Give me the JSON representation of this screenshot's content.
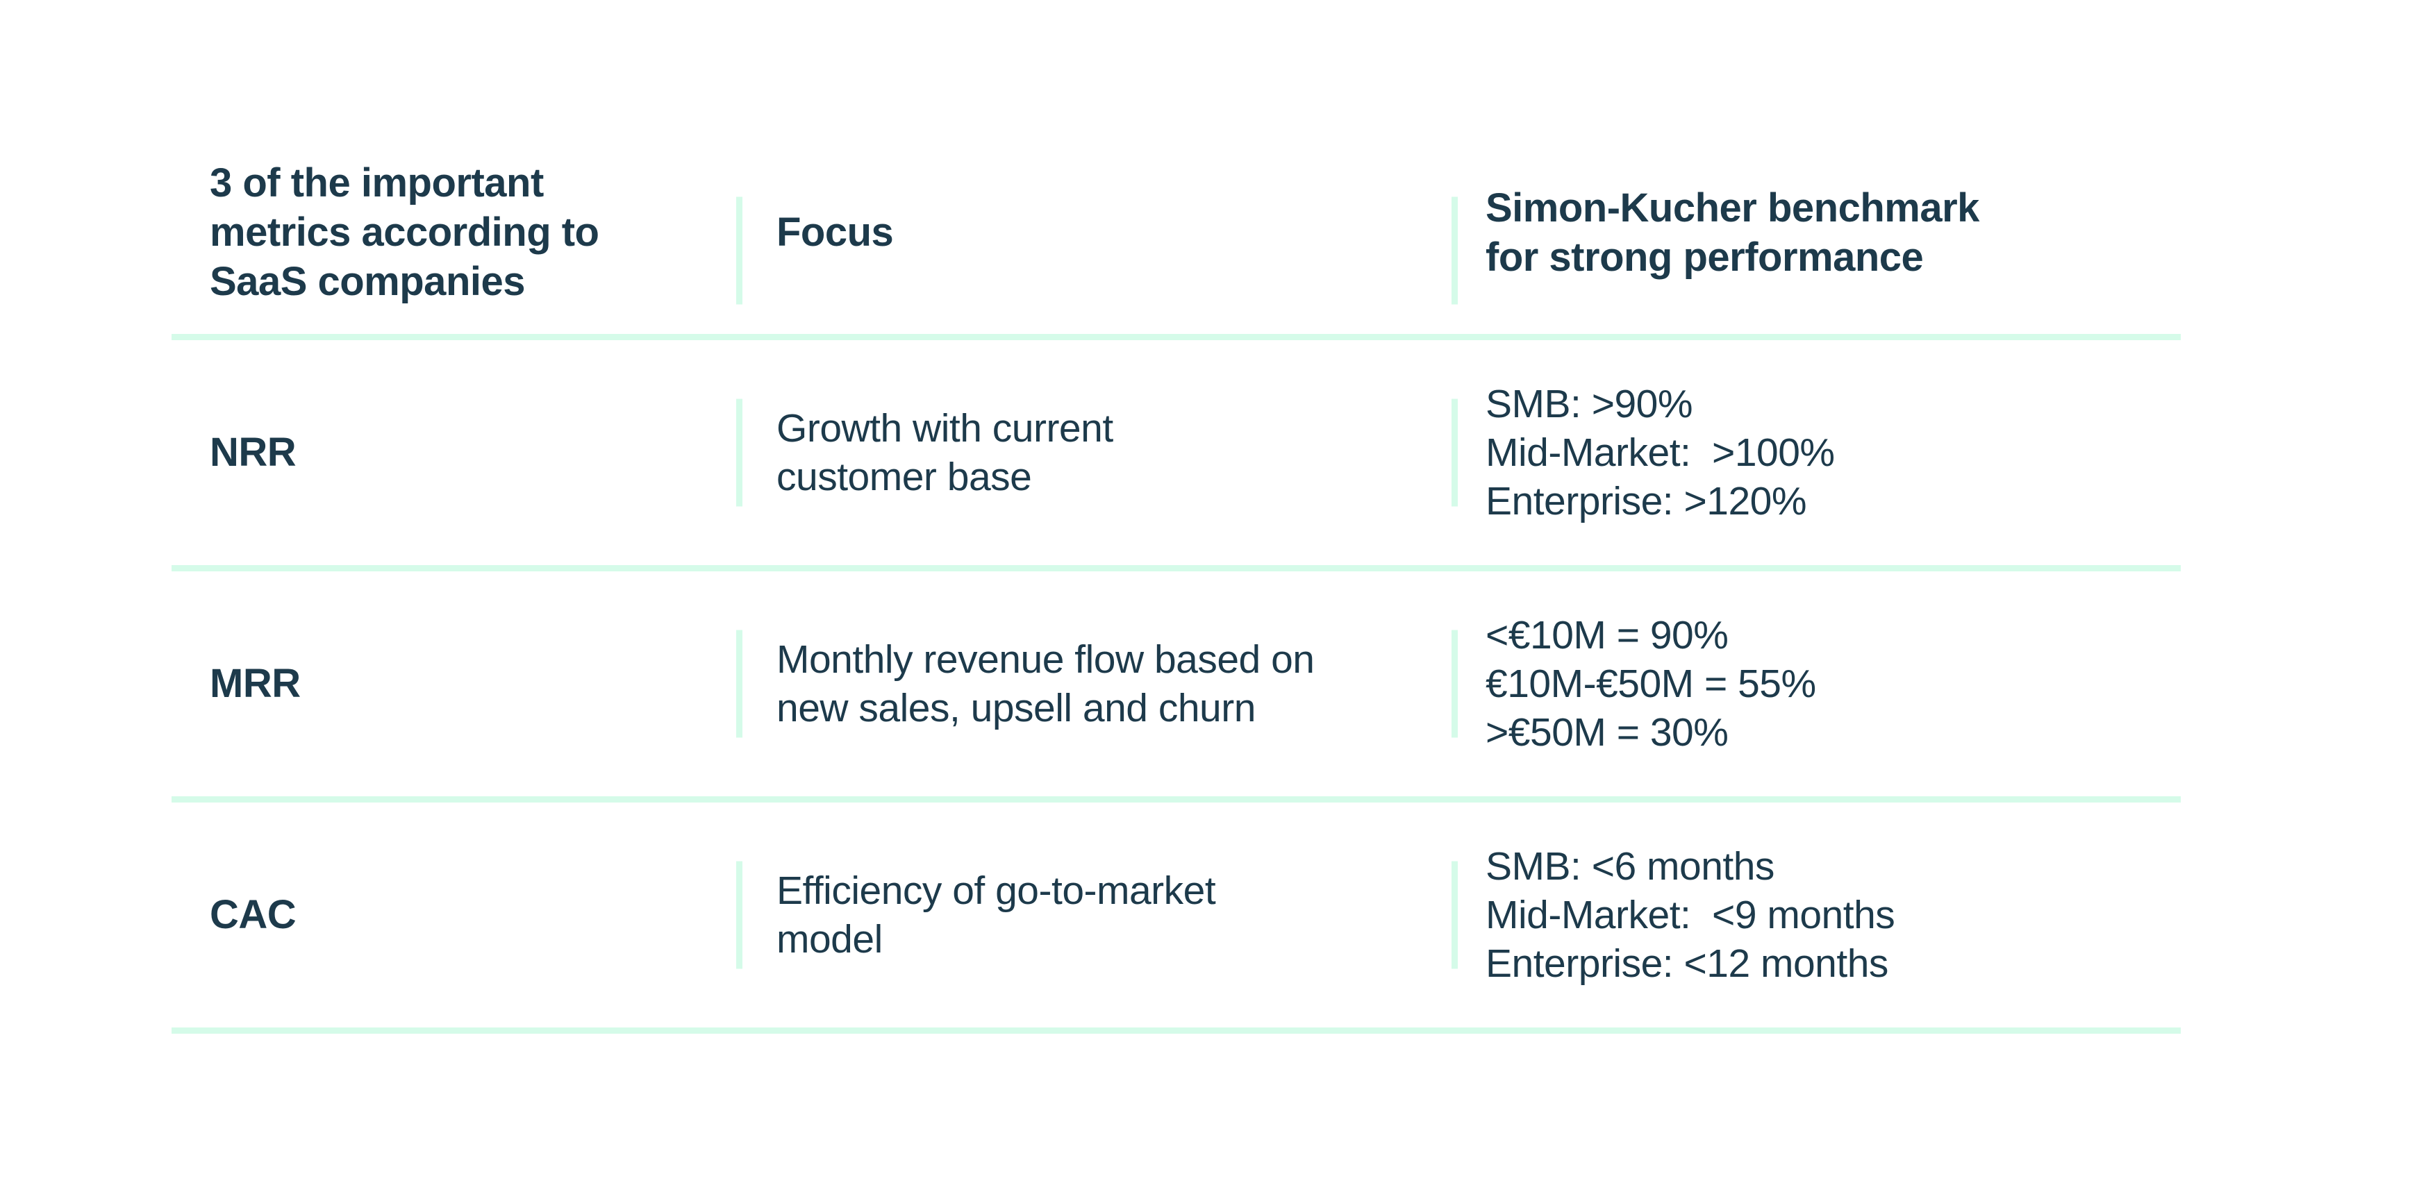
{
  "table": {
    "header": {
      "metric_lines": [
        "3 of the important",
        "metrics according to",
        "SaaS companies"
      ],
      "focus": "Focus",
      "benchmark_lines": [
        "Simon-Kucher benchmark",
        "for strong performance"
      ]
    },
    "rows": [
      {
        "metric": "NRR",
        "focus_lines": [
          "Growth with current",
          "customer base"
        ],
        "benchmark_lines": [
          "SMB: >90%",
          "Mid-Market:  >100%",
          "Enterprise: >120%"
        ]
      },
      {
        "metric": "MRR",
        "focus_lines": [
          "Monthly revenue flow based on",
          "new sales, upsell and churn"
        ],
        "benchmark_lines": [
          "<€10M = 90%",
          "€10M-€50M = 55%",
          ">€50M = 30%"
        ]
      },
      {
        "metric": "CAC",
        "focus_lines": [
          "Efficiency of go-to-market",
          "model"
        ],
        "benchmark_lines": [
          "SMB: <6 months",
          "Mid-Market:  <9 months",
          "Enterprise: <12 months"
        ]
      }
    ],
    "colors": {
      "text": "#1d3a4b",
      "divider": "#d5fbe9",
      "background": "#ffffff"
    }
  }
}
